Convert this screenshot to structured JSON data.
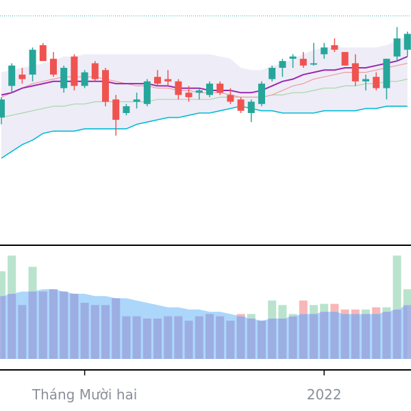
{
  "chart_data": {
    "type": "candlestick",
    "x_axis": {
      "tick_labels": [
        {
          "label": "Tháng Mười hai",
          "index": 8
        },
        {
          "label": "2022",
          "index": 31
        }
      ]
    },
    "price_ylim": [
      0,
      100
    ],
    "volume_ylim": [
      0,
      100
    ],
    "dotted_level": 93,
    "colors": {
      "up": "#26a69a",
      "down": "#ef5350",
      "bb_band": "#00bcd4",
      "bb_mid": "#9c27b0",
      "bb_fill": "#e8e6f4",
      "ma_fast": "#ef9a9a",
      "ma_slow": "#a5d6a7",
      "vol_up": "#b9e3cd",
      "vol_down": "#f7b7b7",
      "vol_ma": "#90caf9",
      "vol_bar": "#9aa7de",
      "dotted": "#26a69a",
      "axis": "#000000"
    },
    "candles": [
      {
        "o": 48,
        "h": 57,
        "l": 45,
        "c": 56
      },
      {
        "o": 62,
        "h": 72,
        "l": 59,
        "c": 71
      },
      {
        "o": 67,
        "h": 70,
        "l": 63,
        "c": 65
      },
      {
        "o": 67,
        "h": 79,
        "l": 64,
        "c": 78
      },
      {
        "o": 80,
        "h": 81,
        "l": 73,
        "c": 73
      },
      {
        "o": 74,
        "h": 77,
        "l": 66,
        "c": 67
      },
      {
        "o": 61,
        "h": 71,
        "l": 59,
        "c": 70
      },
      {
        "o": 75,
        "h": 76,
        "l": 60,
        "c": 62
      },
      {
        "o": 62,
        "h": 69,
        "l": 61,
        "c": 68
      },
      {
        "o": 72,
        "h": 73,
        "l": 64,
        "c": 65
      },
      {
        "o": 69,
        "h": 70,
        "l": 53,
        "c": 55
      },
      {
        "o": 56,
        "h": 58,
        "l": 40,
        "c": 47
      },
      {
        "o": 50,
        "h": 54,
        "l": 49,
        "c": 53
      },
      {
        "o": 55,
        "h": 59,
        "l": 52,
        "c": 56
      },
      {
        "o": 54,
        "h": 65,
        "l": 53,
        "c": 64
      },
      {
        "o": 66,
        "h": 69,
        "l": 62,
        "c": 63
      },
      {
        "o": 65,
        "h": 69,
        "l": 62,
        "c": 64
      },
      {
        "o": 64,
        "h": 65,
        "l": 56,
        "c": 58
      },
      {
        "o": 59,
        "h": 62,
        "l": 55,
        "c": 57
      },
      {
        "o": 59,
        "h": 61,
        "l": 56,
        "c": 60
      },
      {
        "o": 58,
        "h": 64,
        "l": 57,
        "c": 63
      },
      {
        "o": 63,
        "h": 64,
        "l": 58,
        "c": 59
      },
      {
        "o": 58,
        "h": 61,
        "l": 54,
        "c": 55
      },
      {
        "o": 56,
        "h": 57,
        "l": 50,
        "c": 51
      },
      {
        "o": 50,
        "h": 56,
        "l": 46,
        "c": 55
      },
      {
        "o": 54,
        "h": 64,
        "l": 53,
        "c": 63
      },
      {
        "o": 65,
        "h": 71,
        "l": 64,
        "c": 70
      },
      {
        "o": 70,
        "h": 74,
        "l": 66,
        "c": 73
      },
      {
        "o": 74,
        "h": 76,
        "l": 70,
        "c": 75
      },
      {
        "o": 74,
        "h": 77,
        "l": 70,
        "c": 71
      },
      {
        "o": 72,
        "h": 81,
        "l": 71,
        "c": 72
      },
      {
        "o": 76,
        "h": 81,
        "l": 74,
        "c": 79
      },
      {
        "o": 80,
        "h": 83,
        "l": 77,
        "c": 78
      },
      {
        "o": 77,
        "h": 77,
        "l": 71,
        "c": 71
      },
      {
        "o": 72,
        "h": 76,
        "l": 62,
        "c": 64
      },
      {
        "o": 64,
        "h": 67,
        "l": 60,
        "c": 65
      },
      {
        "o": 66,
        "h": 68,
        "l": 60,
        "c": 61
      },
      {
        "o": 61,
        "h": 74,
        "l": 56,
        "c": 74
      },
      {
        "o": 75,
        "h": 88,
        "l": 73,
        "c": 83
      },
      {
        "o": 78,
        "h": 86,
        "l": 75,
        "c": 85
      }
    ],
    "bb_upper": [
      68,
      69,
      70,
      71,
      72,
      73,
      75,
      75,
      76,
      76,
      76,
      76,
      76,
      76,
      76,
      76,
      76,
      76,
      76,
      76,
      76,
      75,
      74,
      70,
      69,
      69,
      71,
      72,
      74,
      76,
      78,
      79,
      79,
      79,
      79,
      79,
      79,
      80,
      82,
      84
    ],
    "bb_mid": [
      58,
      59,
      61,
      62,
      63,
      64,
      64,
      64,
      64,
      64,
      64,
      63,
      63,
      63,
      63,
      62,
      62,
      61,
      61,
      61,
      60,
      60,
      60,
      59,
      59,
      60,
      62,
      64,
      65,
      67,
      68,
      69,
      69,
      70,
      70,
      70,
      71,
      72,
      73,
      75
    ],
    "bb_lower": [
      30,
      33,
      36,
      38,
      41,
      42,
      42,
      42,
      43,
      43,
      43,
      43,
      43,
      45,
      46,
      47,
      48,
      48,
      49,
      50,
      50,
      51,
      52,
      53,
      52,
      51,
      51,
      50,
      50,
      50,
      50,
      51,
      51,
      51,
      51,
      52,
      52,
      53,
      53,
      53
    ],
    "ma_fast": [
      57,
      59,
      61,
      63,
      64,
      65,
      66,
      66,
      66,
      66,
      65,
      64,
      63,
      62,
      62,
      61,
      61,
      60,
      60,
      59,
      59,
      59,
      58,
      57,
      57,
      57,
      58,
      60,
      62,
      63,
      65,
      66,
      67,
      68,
      68,
      68,
      69,
      70,
      71,
      72
    ],
    "ma_slow": [
      48,
      49,
      50,
      51,
      52,
      53,
      53,
      54,
      54,
      55,
      55,
      55,
      55,
      55,
      55,
      56,
      56,
      56,
      56,
      56,
      56,
      57,
      57,
      57,
      57,
      57,
      58,
      58,
      59,
      59,
      60,
      61,
      61,
      62,
      62,
      63,
      63,
      64,
      64,
      65
    ],
    "volume": [
      78,
      92,
      48,
      82,
      60,
      62,
      60,
      58,
      50,
      48,
      48,
      54,
      38,
      38,
      36,
      36,
      38,
      38,
      34,
      38,
      40,
      38,
      34,
      40,
      40,
      34,
      52,
      48,
      40,
      52,
      48,
      49,
      49,
      44,
      44,
      44,
      46,
      46,
      92,
      62
    ],
    "volume_ma": [
      56,
      58,
      60,
      60,
      62,
      62,
      60,
      58,
      58,
      56,
      56,
      54,
      54,
      52,
      50,
      48,
      46,
      46,
      44,
      44,
      42,
      42,
      40,
      38,
      36,
      34,
      36,
      36,
      38,
      40,
      40,
      42,
      42,
      40,
      40,
      40,
      40,
      42,
      44,
      48
    ]
  }
}
